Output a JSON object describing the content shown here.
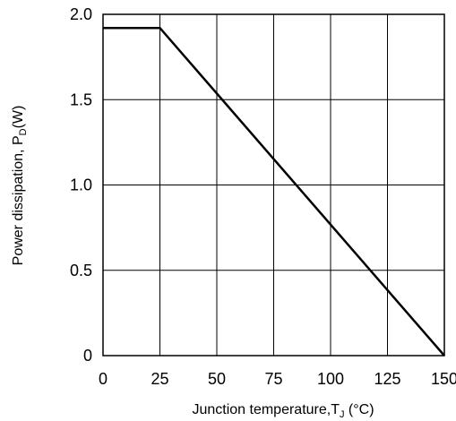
{
  "chart_data": {
    "type": "line",
    "title": "",
    "xlabel": {
      "main": "Junction temperature,T",
      "sub": "J",
      "unit": " (°C)"
    },
    "ylabel": {
      "main": "Power dissipation, P",
      "sub": "D",
      "unit": "(W)"
    },
    "xlim": [
      0,
      150
    ],
    "ylim": [
      0,
      2.0
    ],
    "xticks": [
      0,
      25,
      50,
      75,
      100,
      125,
      150
    ],
    "xtick_labels": [
      "0",
      "25",
      "50",
      "75",
      "100",
      "125",
      "150"
    ],
    "yticks": [
      0,
      0.5,
      1.0,
      1.5,
      2.0
    ],
    "ytick_labels": [
      "0",
      "0.5",
      "1.0",
      "1.5",
      "2.0"
    ],
    "grid": true,
    "series": [
      {
        "x": [
          0,
          25,
          150
        ],
        "y": [
          1.92,
          1.92,
          0
        ],
        "color": "#000000"
      }
    ]
  }
}
